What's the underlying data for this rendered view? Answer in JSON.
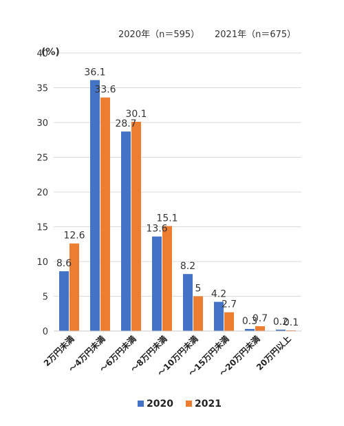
{
  "chart_data": {
    "type": "bar",
    "title": "",
    "xlabel": "",
    "ylabel": "",
    "y_unit": "(%)",
    "ylim": [
      0,
      40
    ],
    "yticks": [
      0,
      5,
      10,
      15,
      20,
      25,
      30,
      35,
      40
    ],
    "grid": true,
    "legend_position": "bottom",
    "categories": [
      "2万円未満",
      "～4万円未満",
      "～6万円未満",
      "～8万円未満",
      "～10万円未満",
      "～15万円未満",
      "～20万円未満",
      "20万円以上"
    ],
    "series": [
      {
        "name": "2020",
        "values": [
          8.6,
          36.1,
          28.7,
          13.6,
          8.2,
          4.2,
          0.3,
          0.2
        ],
        "color": "#4472C4"
      },
      {
        "name": "2021",
        "values": [
          12.6,
          33.6,
          30.1,
          15.1,
          5,
          2.7,
          0.7,
          0.1
        ],
        "color": "#ED7D31"
      }
    ],
    "sample_sizes": [
      "2020年（n＝595）",
      "2021年（n＝675）"
    ]
  }
}
